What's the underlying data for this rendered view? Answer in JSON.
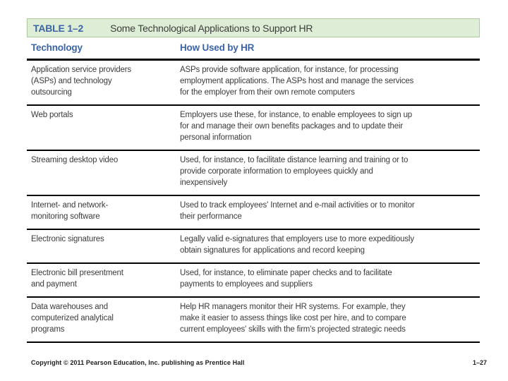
{
  "slide": {
    "caption": {
      "label": "TABLE 1–2",
      "title": "Some Technological Applications to Support HR"
    },
    "columns": {
      "col1": "Technology",
      "col2": "How Used by HR"
    },
    "rows": [
      {
        "technology": "Application service providers\n(ASPs) and technology\noutsourcing",
        "usage": "ASPs provide software application, for instance, for processing\nemployment applications. The ASPs host and manage the services\nfor the employer from their own remote computers"
      },
      {
        "technology": "Web portals",
        "usage": "Employers use these, for instance, to enable employees to sign up\nfor and manage their own benefits packages and to update their\npersonal information"
      },
      {
        "technology": "Streaming desktop video",
        "usage": "Used, for instance, to facilitate distance learning and training or to\nprovide corporate information to employees quickly and\ninexpensively"
      },
      {
        "technology": "Internet- and network-\nmonitoring software",
        "usage": "Used to track employees' Internet and e-mail activities or to monitor\ntheir performance"
      },
      {
        "technology": "Electronic signatures",
        "usage": "Legally valid e-signatures that employers use to more expeditiously\nobtain signatures for applications and record keeping"
      },
      {
        "technology": "Electronic bill presentment\nand payment",
        "usage": "Used, for instance, to eliminate paper checks and to facilitate\npayments to employees and suppliers"
      },
      {
        "technology": "Data warehouses and\ncomputerized analytical\nprograms",
        "usage": "Help HR managers monitor their HR systems. For example, they\nmake it easier to assess things like cost per hire, and to compare\ncurrent employees' skills with the firm's projected strategic needs"
      }
    ],
    "footer": {
      "copyright": "Copyright © 2011 Pearson Education, Inc. publishing as Prentice Hall",
      "page_number": "1–27"
    },
    "colors": {
      "caption_bg": "#deedd5",
      "caption_border": "#aec99a",
      "accent_blue": "#3c64a8",
      "rule": "#000000"
    }
  }
}
